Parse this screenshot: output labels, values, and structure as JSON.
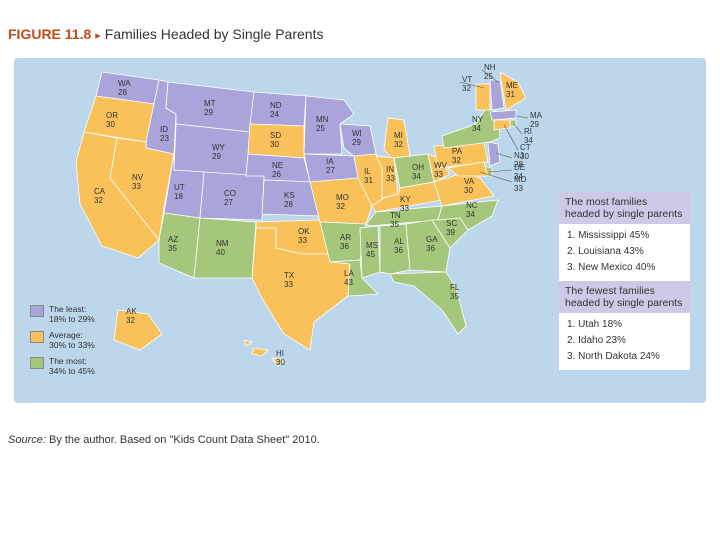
{
  "figure": {
    "number": "FIGURE 11.8",
    "arrow": "▸",
    "title": "Families Headed by Single Parents"
  },
  "colors": {
    "least": "#a9a4d9",
    "average": "#f8c15a",
    "most": "#a5c77c",
    "ocean": "#bcd6ec",
    "box_header": "#cfc8e6"
  },
  "legend": [
    {
      "key": "least",
      "label": "The least:\n18% to 29%"
    },
    {
      "key": "average",
      "label": "Average:\n30% to 33%"
    },
    {
      "key": "most",
      "label": "The most:\n34% to 45%"
    }
  ],
  "states": [
    {
      "abbr": "WA",
      "value": "28",
      "category": "least"
    },
    {
      "abbr": "OR",
      "value": "30",
      "category": "average"
    },
    {
      "abbr": "CA",
      "value": "32",
      "category": "average"
    },
    {
      "abbr": "ID",
      "value": "23",
      "category": "least"
    },
    {
      "abbr": "NV",
      "value": "33",
      "category": "average"
    },
    {
      "abbr": "MT",
      "value": "29",
      "category": "least"
    },
    {
      "abbr": "WY",
      "value": "29",
      "category": "least"
    },
    {
      "abbr": "UT",
      "value": "18",
      "category": "least"
    },
    {
      "abbr": "AZ",
      "value": "35",
      "category": "most"
    },
    {
      "abbr": "CO",
      "value": "27",
      "category": "least"
    },
    {
      "abbr": "NM",
      "value": "40",
      "category": "most"
    },
    {
      "abbr": "ND",
      "value": "24",
      "category": "least"
    },
    {
      "abbr": "SD",
      "value": "30",
      "category": "average"
    },
    {
      "abbr": "NE",
      "value": "26",
      "category": "least"
    },
    {
      "abbr": "KS",
      "value": "28",
      "category": "least"
    },
    {
      "abbr": "OK",
      "value": "33",
      "category": "average"
    },
    {
      "abbr": "TX",
      "value": "33",
      "category": "average"
    },
    {
      "abbr": "MN",
      "value": "25",
      "category": "least"
    },
    {
      "abbr": "IA",
      "value": "27",
      "category": "least"
    },
    {
      "abbr": "MO",
      "value": "32",
      "category": "average"
    },
    {
      "abbr": "AR",
      "value": "36",
      "category": "most"
    },
    {
      "abbr": "LA",
      "value": "43",
      "category": "most"
    },
    {
      "abbr": "WI",
      "value": "29",
      "category": "least"
    },
    {
      "abbr": "IL",
      "value": "31",
      "category": "average"
    },
    {
      "abbr": "MI",
      "value": "32",
      "category": "average"
    },
    {
      "abbr": "IN",
      "value": "33",
      "category": "average"
    },
    {
      "abbr": "OH",
      "value": "34",
      "category": "most"
    },
    {
      "abbr": "KY",
      "value": "33",
      "category": "average"
    },
    {
      "abbr": "TN",
      "value": "35",
      "category": "most"
    },
    {
      "abbr": "MS",
      "value": "45",
      "category": "most"
    },
    {
      "abbr": "AL",
      "value": "36",
      "category": "most"
    },
    {
      "abbr": "GA",
      "value": "36",
      "category": "most"
    },
    {
      "abbr": "FL",
      "value": "35",
      "category": "most"
    },
    {
      "abbr": "SC",
      "value": "39",
      "category": "most"
    },
    {
      "abbr": "NC",
      "value": "34",
      "category": "most"
    },
    {
      "abbr": "VA",
      "value": "30",
      "category": "average"
    },
    {
      "abbr": "WV",
      "value": "33",
      "category": "average"
    },
    {
      "abbr": "PA",
      "value": "32",
      "category": "average"
    },
    {
      "abbr": "NY",
      "value": "34",
      "category": "most"
    },
    {
      "abbr": "VT",
      "value": "32",
      "category": "average"
    },
    {
      "abbr": "NH",
      "value": "25",
      "category": "least"
    },
    {
      "abbr": "ME",
      "value": "31",
      "category": "average"
    },
    {
      "abbr": "MA",
      "value": "29",
      "category": "least"
    },
    {
      "abbr": "RI",
      "value": "34",
      "category": "most"
    },
    {
      "abbr": "CT",
      "value": "30",
      "category": "average"
    },
    {
      "abbr": "NJ",
      "value": "28",
      "category": "least"
    },
    {
      "abbr": "DE",
      "value": "34",
      "category": "most"
    },
    {
      "abbr": "MD",
      "value": "33",
      "category": "average"
    },
    {
      "abbr": "AK",
      "value": "32",
      "category": "average"
    },
    {
      "abbr": "HI",
      "value": "30",
      "category": "average"
    }
  ],
  "most_box": {
    "heading": "The most families\nheaded by single parents",
    "items": [
      "1. Mississippi 45%",
      "2. Louisiana 43%",
      "3. New Mexico 40%"
    ]
  },
  "fewest_box": {
    "heading": "The fewest families\nheaded by single parents",
    "items": [
      "1. Utah 18%",
      "2. Idaho 23%",
      "3. North Dakota 24%"
    ]
  },
  "source": {
    "prefix": "Source:",
    "text": " By the author. Based on \"Kids Count Data Sheet\" 2010."
  }
}
